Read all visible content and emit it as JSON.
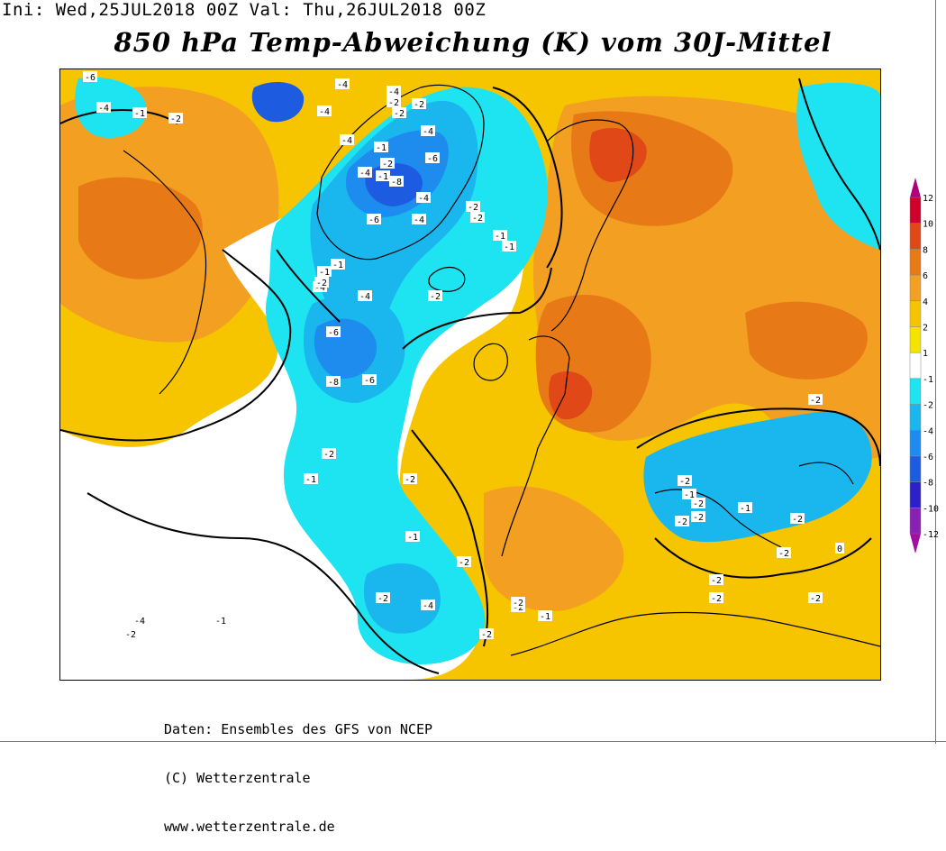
{
  "header": {
    "run_info": "Ini: Wed,25JUL2018 00Z Val: Thu,26JUL2018 00Z"
  },
  "title": "850 hPa Temp-Abweichung (K) vom 30J-Mittel",
  "legend": {
    "levels": [
      "12",
      "10",
      "8",
      "6",
      "4",
      "2",
      "1",
      "-1",
      "-2",
      "-4",
      "-6",
      "-8",
      "-10",
      "-12"
    ],
    "colors": [
      "#b0007d",
      "#d0002c",
      "#e04818",
      "#e77a16",
      "#f29f22",
      "#f7c400",
      "#f5e400",
      "#ffffff",
      "#1ee3f0",
      "#19b7ee",
      "#1e8cee",
      "#1d5ce0",
      "#2a22c8",
      "#8820b4",
      "#a00fa0"
    ]
  },
  "map": {
    "colors": {
      "anomaly_plus_1": "#f5e400",
      "anomaly_plus_2": "#f7c400",
      "anomaly_plus_4": "#f29f22",
      "anomaly_plus_6": "#e77a16",
      "anomaly_plus_8": "#e04818",
      "anomaly_minus_1": "#ffffff",
      "anomaly_minus_2": "#1ee3f0",
      "anomaly_minus_4": "#19b7ee",
      "anomaly_minus_6": "#1e8cee",
      "anomaly_minus_8": "#1d5ce0"
    },
    "contour_labels": [
      {
        "text": "-6"
      },
      {
        "text": "-4"
      },
      {
        "text": "-1"
      },
      {
        "text": "-2"
      },
      {
        "text": "-4"
      },
      {
        "text": "-4"
      },
      {
        "text": "-2"
      },
      {
        "text": "-2"
      },
      {
        "text": "-4"
      },
      {
        "text": "-4"
      },
      {
        "text": "-2"
      },
      {
        "text": "-4"
      },
      {
        "text": "-1"
      },
      {
        "text": "-6"
      },
      {
        "text": "-1"
      },
      {
        "text": "-2"
      },
      {
        "text": "-4"
      },
      {
        "text": "-8"
      },
      {
        "text": "-6"
      },
      {
        "text": "-4"
      },
      {
        "text": "-4"
      },
      {
        "text": "-2"
      },
      {
        "text": "-1"
      },
      {
        "text": "-2"
      },
      {
        "text": "-1"
      },
      {
        "text": "-1"
      },
      {
        "text": "-4"
      },
      {
        "text": "-1"
      },
      {
        "text": "-2"
      },
      {
        "text": "-4"
      },
      {
        "text": "-2"
      },
      {
        "text": "-6"
      },
      {
        "text": "-6"
      },
      {
        "text": "-8"
      },
      {
        "text": "-2"
      },
      {
        "text": "-1"
      },
      {
        "text": "-2"
      },
      {
        "text": "-1"
      },
      {
        "text": "-2"
      },
      {
        "text": "-4"
      },
      {
        "text": "-2"
      },
      {
        "text": "-2"
      },
      {
        "text": "-2"
      },
      {
        "text": "-1"
      },
      {
        "text": "-2"
      },
      {
        "text": "-4"
      },
      {
        "text": "-2"
      },
      {
        "text": "-2"
      },
      {
        "text": "-2"
      },
      {
        "text": "-2"
      },
      {
        "text": "-1"
      },
      {
        "text": "-2"
      },
      {
        "text": "-2"
      },
      {
        "text": "-2"
      },
      {
        "text": "-1"
      },
      {
        "text": "-2"
      },
      {
        "text": "-2"
      },
      {
        "text": "0"
      },
      {
        "text": "-2"
      },
      {
        "text": "-2"
      },
      {
        "text": "-1"
      }
    ]
  },
  "footer": {
    "line1": "Daten: Ensembles des GFS von NCEP",
    "line2": "(C) Wetterzentrale",
    "line3": "www.wetterzentrale.de"
  }
}
